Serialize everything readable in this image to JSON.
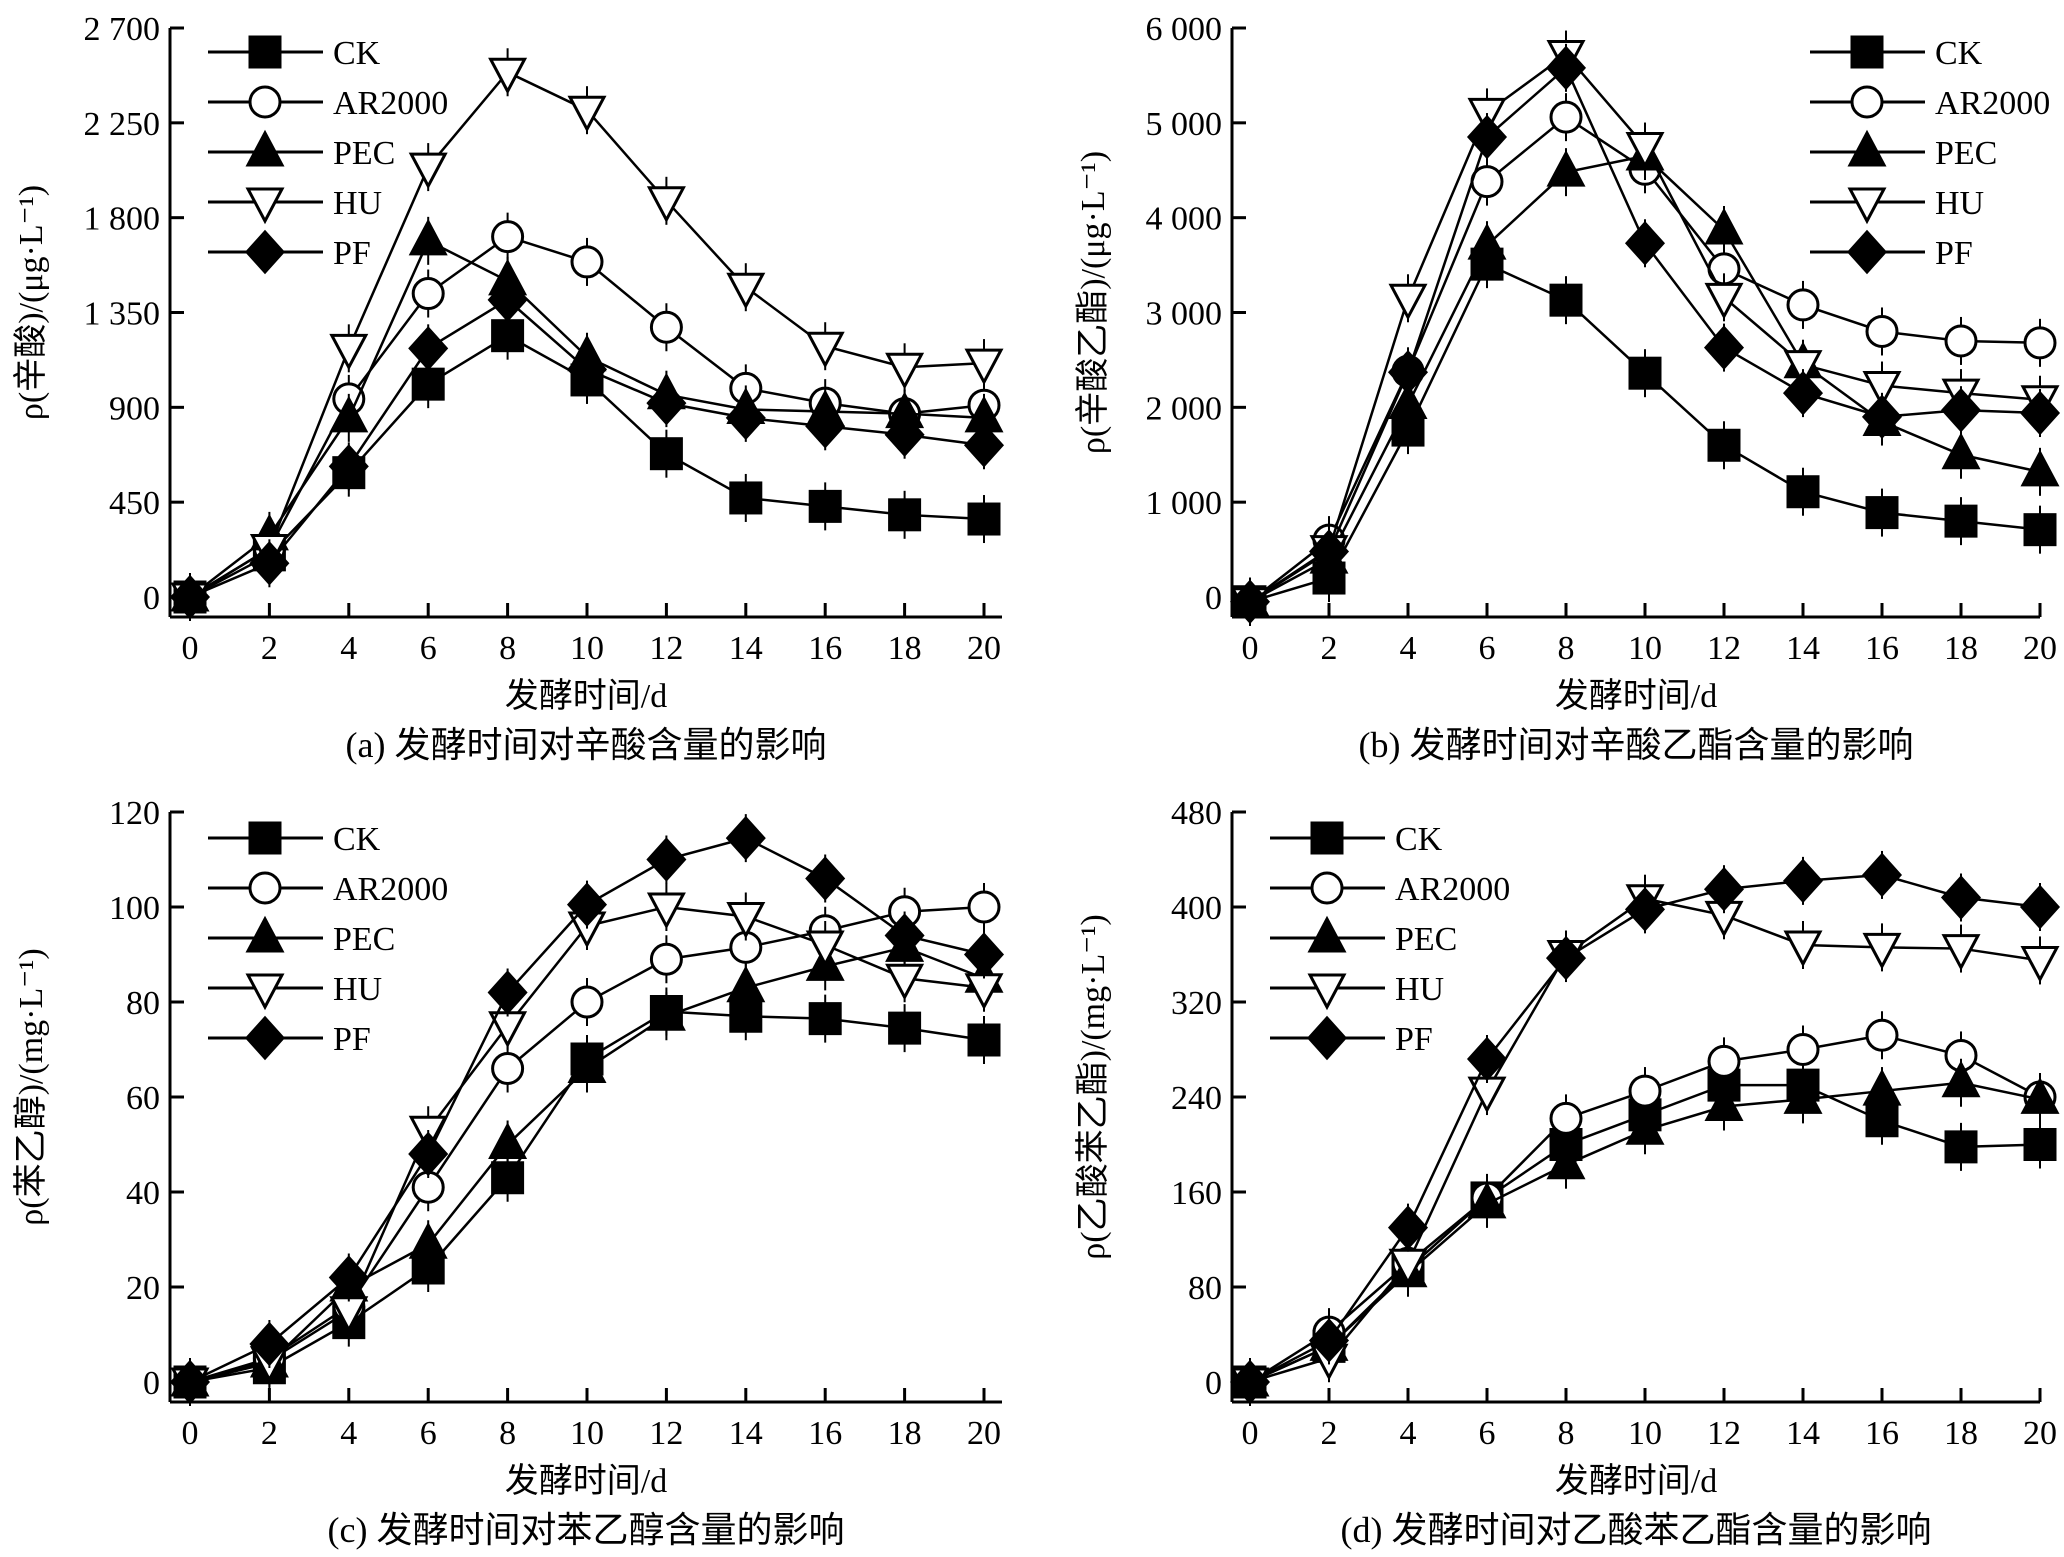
{
  "chart_data": [
    {
      "id": "a",
      "type": "line",
      "caption": "(a) 发酵时间对辛酸含量的影响",
      "xlabel": "发酵时间/d",
      "ylabel": "ρ(辛酸)/(μg·L⁻¹)",
      "x": [
        0,
        2,
        4,
        6,
        8,
        10,
        12,
        14,
        16,
        18,
        20
      ],
      "xlim": [
        -1,
        21
      ],
      "xticks": [
        0,
        2,
        4,
        6,
        8,
        10,
        12,
        14,
        16,
        18,
        20
      ],
      "ylim": [
        -100,
        2700
      ],
      "yticks": [
        0,
        450,
        900,
        1350,
        1800,
        2250,
        2700
      ],
      "ytick_labels": [
        "0",
        "450",
        "900",
        "1 350",
        "1 800",
        "2 250",
        "2 700"
      ],
      "legend_position": "top-left",
      "grid": false,
      "series": [
        {
          "name": "CK",
          "marker": "square-filled",
          "values": [
            0,
            200,
            590,
            1010,
            1240,
            1030,
            680,
            470,
            430,
            390,
            370
          ]
        },
        {
          "name": "AR2000",
          "marker": "circle-open",
          "values": [
            0,
            230,
            940,
            1440,
            1710,
            1590,
            1280,
            990,
            920,
            870,
            910
          ]
        },
        {
          "name": "PEC",
          "marker": "triangle-up-filled",
          "values": [
            0,
            290,
            850,
            1690,
            1500,
            1140,
            960,
            890,
            880,
            870,
            850
          ]
        },
        {
          "name": "HU",
          "marker": "triangle-down-open",
          "values": [
            0,
            230,
            1180,
            2040,
            2490,
            2310,
            1880,
            1470,
            1190,
            1090,
            1110
          ]
        },
        {
          "name": "PF",
          "marker": "diamond-filled",
          "values": [
            0,
            160,
            620,
            1180,
            1410,
            1080,
            920,
            850,
            810,
            770,
            720
          ]
        }
      ]
    },
    {
      "id": "b",
      "type": "line",
      "caption": "(b) 发酵时间对辛酸乙酯含量的影响",
      "xlabel": "发酵时间/d",
      "ylabel": "ρ(辛酸乙酯)/(μg·L⁻¹)",
      "x": [
        0,
        2,
        4,
        6,
        8,
        10,
        12,
        14,
        16,
        18,
        20
      ],
      "xlim": [
        -1,
        21
      ],
      "xticks": [
        0,
        2,
        4,
        6,
        8,
        10,
        12,
        14,
        16,
        18,
        20
      ],
      "ylim": [
        -220,
        6000
      ],
      "yticks": [
        0,
        1000,
        2000,
        3000,
        4000,
        5000,
        6000
      ],
      "ytick_labels": [
        "0",
        "1 000",
        "2 000",
        "3 000",
        "4 000",
        "5 000",
        "6 000"
      ],
      "legend_position": "top-right",
      "grid": false,
      "series": [
        {
          "name": "CK",
          "marker": "square-filled",
          "values": [
            -50,
            200,
            1760,
            3510,
            3130,
            2360,
            1600,
            1110,
            890,
            800,
            710
          ]
        },
        {
          "name": "AR2000",
          "marker": "circle-open",
          "values": [
            -50,
            600,
            2380,
            4380,
            5060,
            4510,
            3460,
            3080,
            2800,
            2700,
            2680
          ]
        },
        {
          "name": "PEC",
          "marker": "triangle-up-filled",
          "values": [
            -50,
            400,
            2030,
            3710,
            4480,
            4650,
            3870,
            2460,
            1850,
            1500,
            1320
          ]
        },
        {
          "name": "HU",
          "marker": "triangle-down-open",
          "values": [
            -50,
            500,
            3150,
            5110,
            5720,
            4750,
            3160,
            2450,
            2230,
            2150,
            2080
          ]
        },
        {
          "name": "PF",
          "marker": "diamond-filled",
          "values": [
            -50,
            480,
            2370,
            4850,
            5580,
            3730,
            2630,
            2150,
            1900,
            1970,
            1940
          ]
        }
      ]
    },
    {
      "id": "c",
      "type": "line",
      "caption": "(c) 发酵时间对苯乙醇含量的影响",
      "xlabel": "发酵时间/d",
      "ylabel": "ρ(苯乙醇)/(mg·L⁻¹)",
      "x": [
        0,
        2,
        4,
        6,
        8,
        10,
        12,
        14,
        16,
        18,
        20
      ],
      "xlim": [
        -1,
        21
      ],
      "xticks": [
        0,
        2,
        4,
        6,
        8,
        10,
        12,
        14,
        16,
        18,
        20
      ],
      "ylim": [
        -4,
        120
      ],
      "yticks": [
        0,
        20,
        40,
        60,
        80,
        100,
        120
      ],
      "ytick_labels": [
        "0",
        "20",
        "40",
        "60",
        "80",
        "100",
        "120"
      ],
      "legend_position": "top-left",
      "grid": false,
      "series": [
        {
          "name": "CK",
          "marker": "square-filled",
          "values": [
            0,
            3,
            12.5,
            24,
            43,
            68,
            78,
            77,
            76.5,
            74.5,
            72
          ]
        },
        {
          "name": "AR2000",
          "marker": "circle-open",
          "values": [
            0,
            5,
            16,
            41,
            66,
            80,
            89,
            91.5,
            95,
            99,
            100
          ]
        },
        {
          "name": "PEC",
          "marker": "triangle-up-filled",
          "values": [
            0,
            4,
            20,
            29,
            50,
            66,
            77,
            83,
            87.5,
            91.5,
            85
          ]
        },
        {
          "name": "HU",
          "marker": "triangle-down-open",
          "values": [
            0,
            4.5,
            15,
            53,
            75,
            96,
            100,
            98,
            92,
            85,
            83
          ]
        },
        {
          "name": "PF",
          "marker": "diamond-filled",
          "values": [
            0,
            8,
            22,
            48,
            82,
            100.5,
            110,
            114.5,
            106,
            94,
            90
          ]
        }
      ]
    },
    {
      "id": "d",
      "type": "line",
      "caption": "(d) 发酵时间对乙酸苯乙酯含量的影响",
      "xlabel": "发酵时间/d",
      "ylabel": "ρ(乙酸苯乙酯)/(mg·L⁻¹)",
      "x": [
        0,
        2,
        4,
        6,
        8,
        10,
        12,
        14,
        16,
        18,
        20
      ],
      "xlim": [
        -1,
        21
      ],
      "xticks": [
        0,
        2,
        4,
        6,
        8,
        10,
        12,
        14,
        16,
        18,
        20
      ],
      "ylim": [
        -16,
        480
      ],
      "yticks": [
        0,
        80,
        160,
        240,
        320,
        400,
        480
      ],
      "ytick_labels": [
        "0",
        "80",
        "160",
        "240",
        "320",
        "400",
        "480"
      ],
      "legend_position": "top-left",
      "grid": false,
      "series": [
        {
          "name": "CK",
          "marker": "square-filled",
          "values": [
            0,
            30,
            95,
            155,
            200,
            225,
            250,
            250,
            220,
            198,
            200
          ]
        },
        {
          "name": "AR2000",
          "marker": "circle-open",
          "values": [
            0,
            42,
            100,
            155,
            222,
            245,
            270,
            280,
            292,
            275,
            240
          ]
        },
        {
          "name": "PEC",
          "marker": "triangle-up-filled",
          "values": [
            0,
            30,
            92,
            150,
            183,
            212,
            232,
            238,
            245,
            252,
            238
          ]
        },
        {
          "name": "HU",
          "marker": "triangle-down-open",
          "values": [
            0,
            20,
            100,
            245,
            360,
            407,
            393,
            368,
            366,
            365,
            355
          ]
        },
        {
          "name": "PF",
          "marker": "diamond-filled",
          "values": [
            0,
            35,
            130,
            272,
            357,
            398,
            415,
            422,
            427,
            408,
            400
          ]
        }
      ]
    }
  ]
}
